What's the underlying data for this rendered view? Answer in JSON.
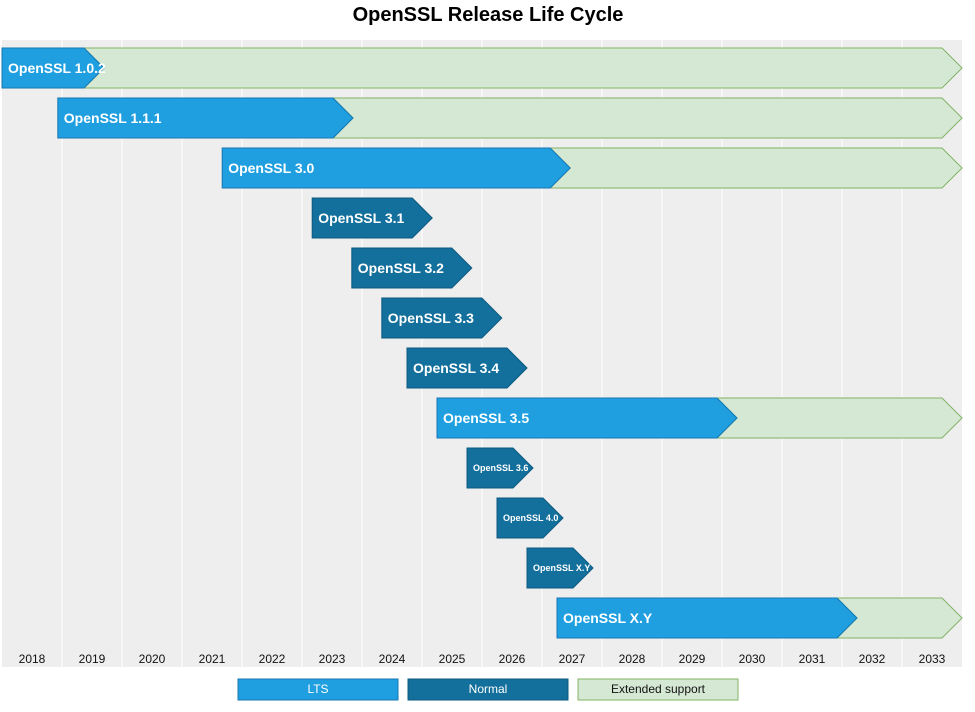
{
  "chart_data": {
    "type": "bar",
    "subtype": "horizontal-gantt-arrows",
    "title": "OpenSSL Release Life Cycle",
    "xlabel": "",
    "ylabel": "",
    "years": [
      "2018",
      "2019",
      "2020",
      "2021",
      "2022",
      "2023",
      "2024",
      "2025",
      "2026",
      "2027",
      "2028",
      "2029",
      "2030",
      "2031",
      "2032",
      "2033"
    ],
    "xlim": [
      2017.5,
      2033.5
    ],
    "grid": "vertical",
    "legend": [
      {
        "key": "lts",
        "label": "LTS"
      },
      {
        "key": "normal",
        "label": "Normal"
      },
      {
        "key": "extended",
        "label": "Extended support"
      }
    ],
    "colors": {
      "lts": "#1f9fe0",
      "lts_border": "#1777b3",
      "normal": "#136f9b",
      "normal_border": "#0d5a80",
      "extended": "#d5e8d4",
      "extended_border": "#82b366",
      "plot_bg": "#eeeeee",
      "grid": "#ffffff"
    },
    "releases": [
      {
        "name": "OpenSSL 1.0.2",
        "type": "lts",
        "start": 2017.5,
        "end": 2019.2,
        "extended_end": 2033.5,
        "small": false
      },
      {
        "name": "OpenSSL 1.1.1",
        "type": "lts",
        "start": 2018.43,
        "end": 2023.35,
        "extended_end": 2033.5,
        "small": false
      },
      {
        "name": "OpenSSL 3.0",
        "type": "lts",
        "start": 2021.17,
        "end": 2026.97,
        "extended_end": 2033.5,
        "small": false
      },
      {
        "name": "OpenSSL 3.1",
        "type": "normal",
        "start": 2022.67,
        "end": 2024.67,
        "extended_end": null,
        "small": false
      },
      {
        "name": "OpenSSL 3.2",
        "type": "normal",
        "start": 2023.33,
        "end": 2025.33,
        "extended_end": null,
        "small": false
      },
      {
        "name": "OpenSSL 3.3",
        "type": "normal",
        "start": 2023.83,
        "end": 2025.83,
        "extended_end": null,
        "small": false
      },
      {
        "name": "OpenSSL 3.4",
        "type": "normal",
        "start": 2024.25,
        "end": 2026.25,
        "extended_end": null,
        "small": false
      },
      {
        "name": "OpenSSL 3.5",
        "type": "lts",
        "start": 2024.75,
        "end": 2029.75,
        "extended_end": 2033.5,
        "small": false
      },
      {
        "name": "OpenSSL 3.6",
        "type": "normal",
        "start": 2025.25,
        "end": 2026.35,
        "extended_end": null,
        "small": true
      },
      {
        "name": "OpenSSL 4.0",
        "type": "normal",
        "start": 2025.75,
        "end": 2026.85,
        "extended_end": null,
        "small": true
      },
      {
        "name": "OpenSSL X.Y",
        "type": "normal",
        "start": 2026.25,
        "end": 2027.35,
        "extended_end": null,
        "small": true
      },
      {
        "name": "OpenSSL X.Y",
        "type": "lts",
        "start": 2026.75,
        "end": 2031.75,
        "extended_end": 2033.5,
        "small": false
      }
    ]
  }
}
